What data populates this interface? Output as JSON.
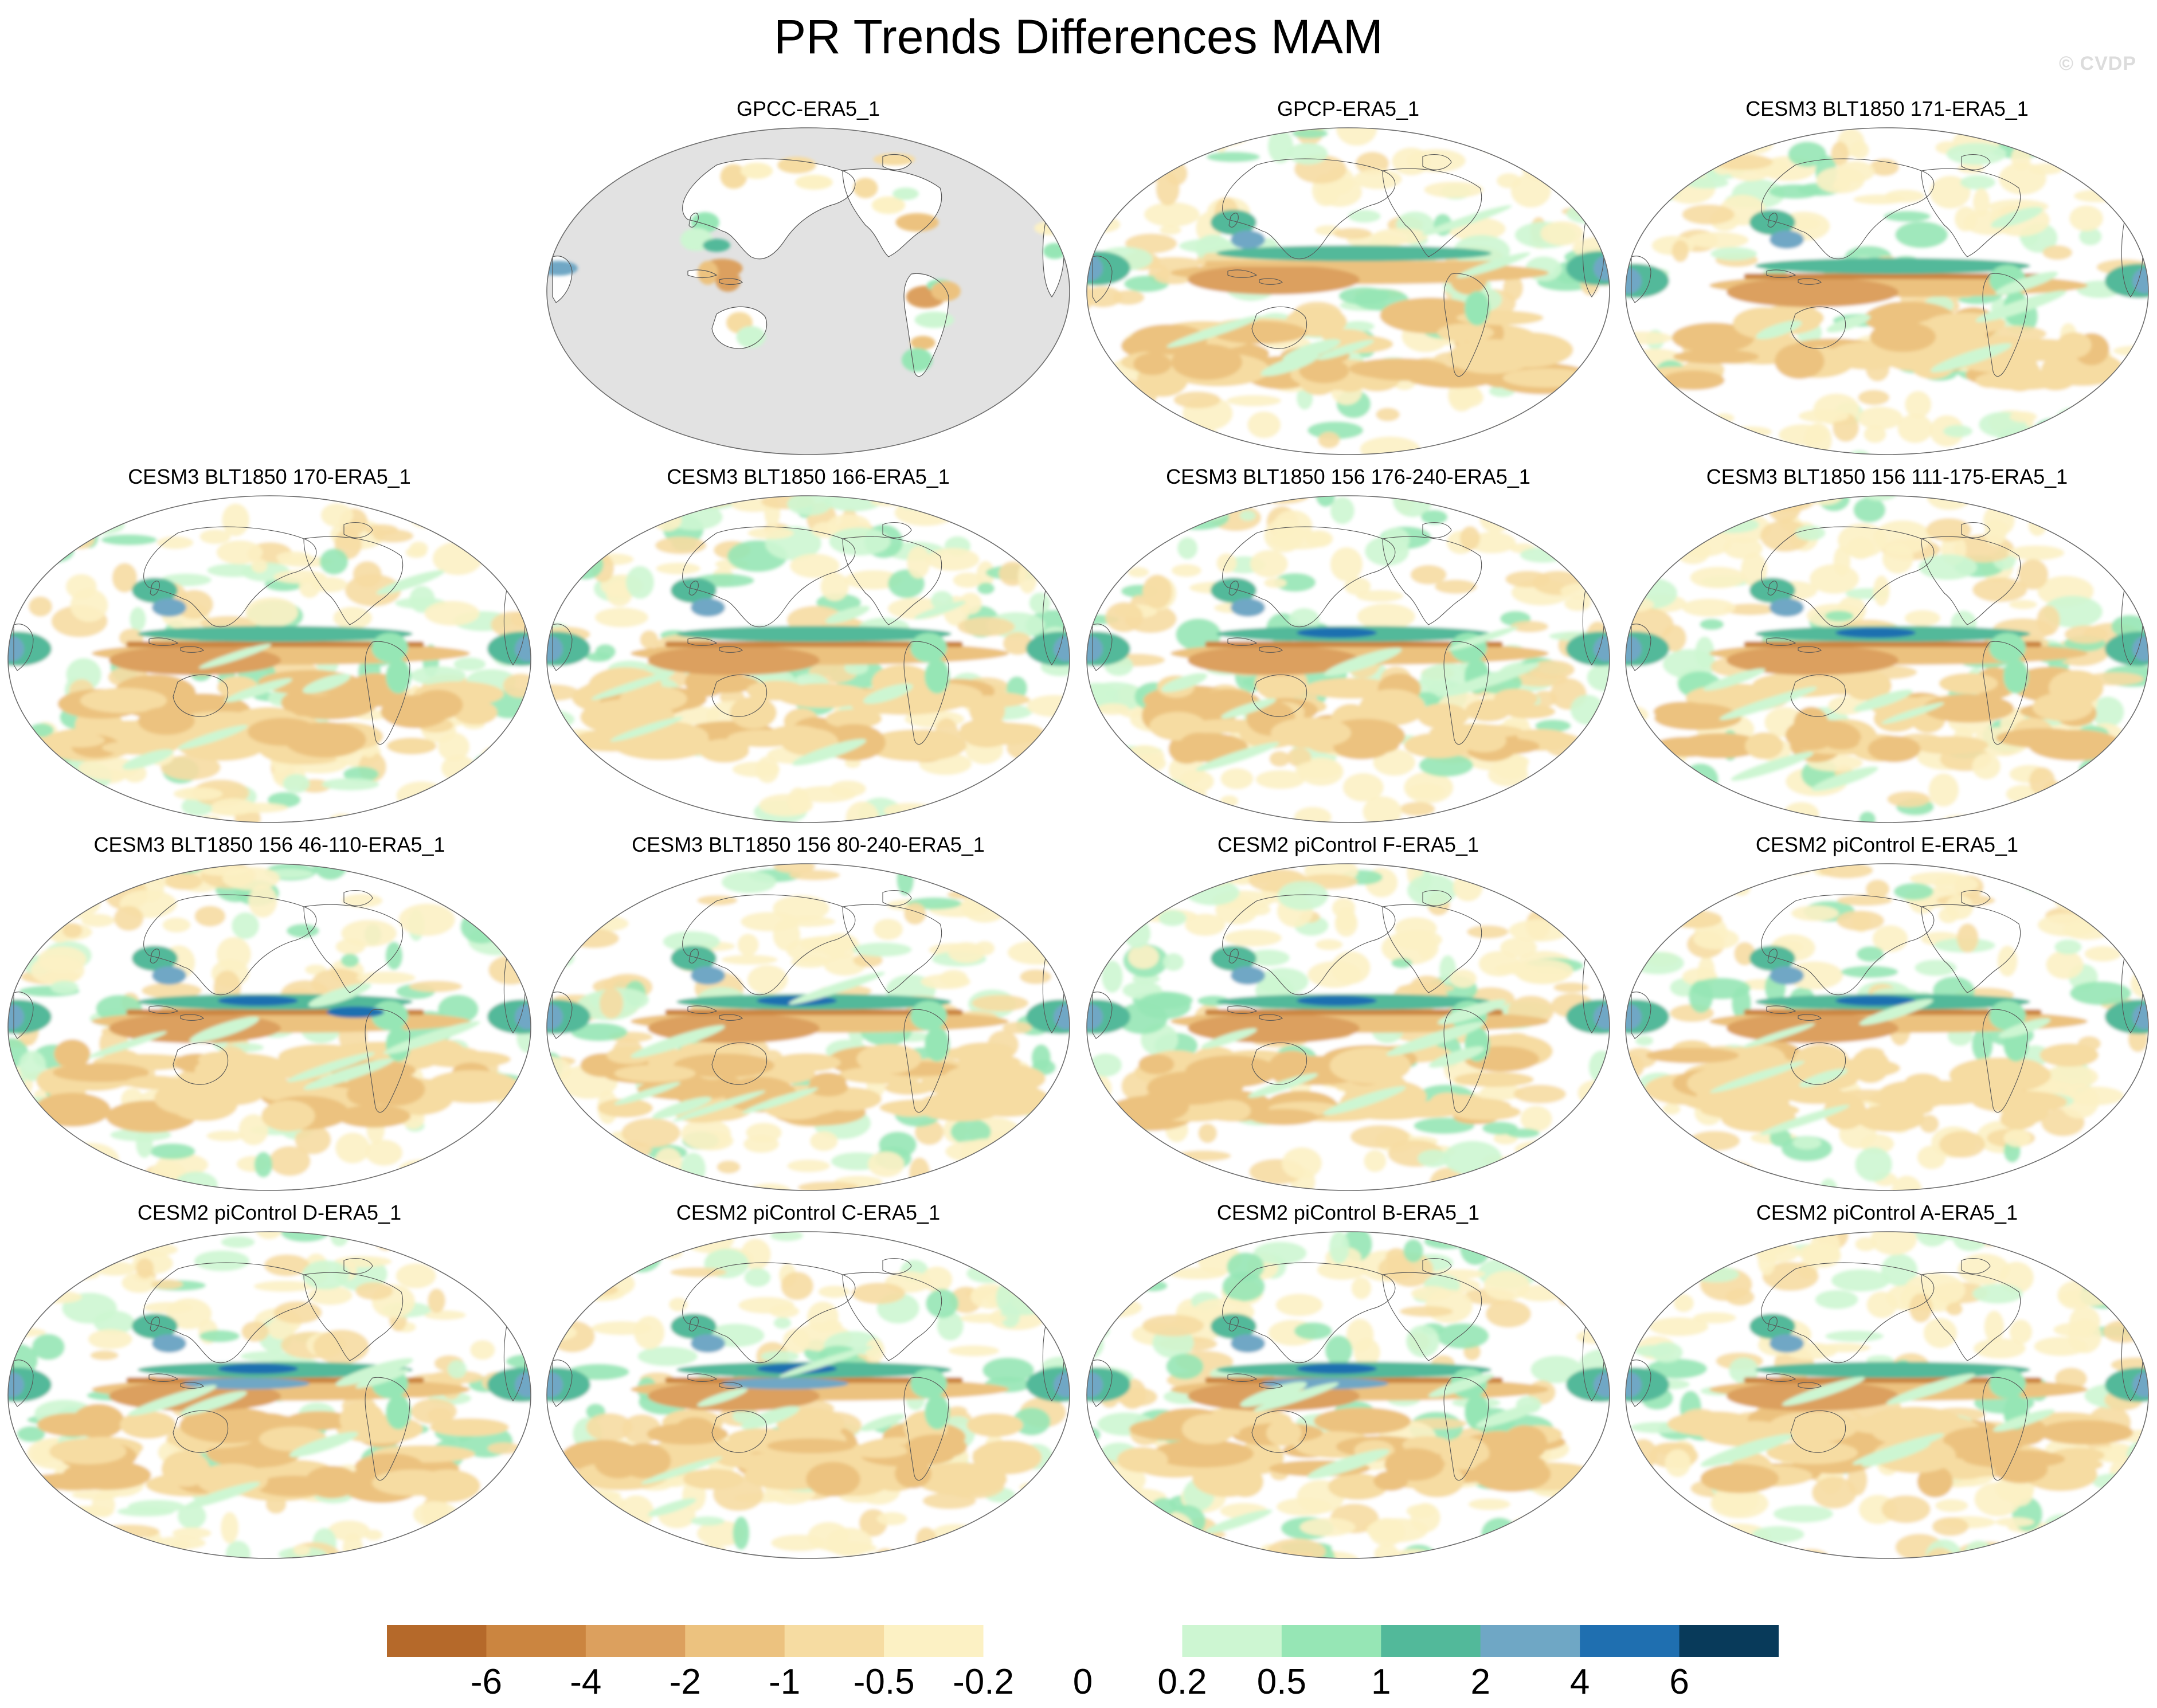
{
  "title": "PR Trends Differences MAM",
  "watermark": "© CVDP",
  "panels": [
    {
      "title": "GPCC-ERA5_1",
      "ocean": "missing",
      "pattern": "obs"
    },
    {
      "title": "GPCP-ERA5_1",
      "pattern": "a"
    },
    {
      "title": "CESM3 BLT1850 171-ERA5_1",
      "pattern": "b"
    },
    {
      "title": "CESM3 BLT1850 170-ERA5_1",
      "pattern": "b"
    },
    {
      "title": "CESM3 BLT1850 166-ERA5_1",
      "pattern": "b"
    },
    {
      "title": "CESM3 BLT1850 156 176-240-ERA5_1",
      "pattern": "c"
    },
    {
      "title": "CESM3 BLT1850 156 111-175-ERA5_1",
      "pattern": "c"
    },
    {
      "title": "CESM3 BLT1850 156 46-110-ERA5_1",
      "pattern": "d"
    },
    {
      "title": "CESM3 BLT1850 156 80-240-ERA5_1",
      "pattern": "c"
    },
    {
      "title": "CESM2 piControl F-ERA5_1",
      "pattern": "c"
    },
    {
      "title": "CESM2 piControl E-ERA5_1",
      "pattern": "c"
    },
    {
      "title": "CESM2 piControl D-ERA5_1",
      "pattern": "e"
    },
    {
      "title": "CESM2 piControl C-ERA5_1",
      "pattern": "e"
    },
    {
      "title": "CESM2 piControl B-ERA5_1",
      "pattern": "e"
    },
    {
      "title": "CESM2 piControl A-ERA5_1",
      "pattern": "b"
    }
  ],
  "colorbar": {
    "levels": [
      "-6",
      "-4",
      "-2",
      "-1",
      "-0.5",
      "-0.2",
      "0",
      "0.2",
      "0.5",
      "1",
      "2",
      "4",
      "6"
    ],
    "colors": [
      "#b5692a",
      "#cb8540",
      "#dca05e",
      "#ecc27f",
      "#f6dca2",
      "#fcf1c4",
      "#ffffff",
      "#ffffff",
      "#cdf6d2",
      "#96e6b5",
      "#52b99a",
      "#6fa7c5",
      "#1f6fb0",
      "#083a5a"
    ]
  },
  "palette": {
    "land_mask": "#e2e2e2",
    "coast": "#555555",
    "outline": "#6b6b6b"
  }
}
